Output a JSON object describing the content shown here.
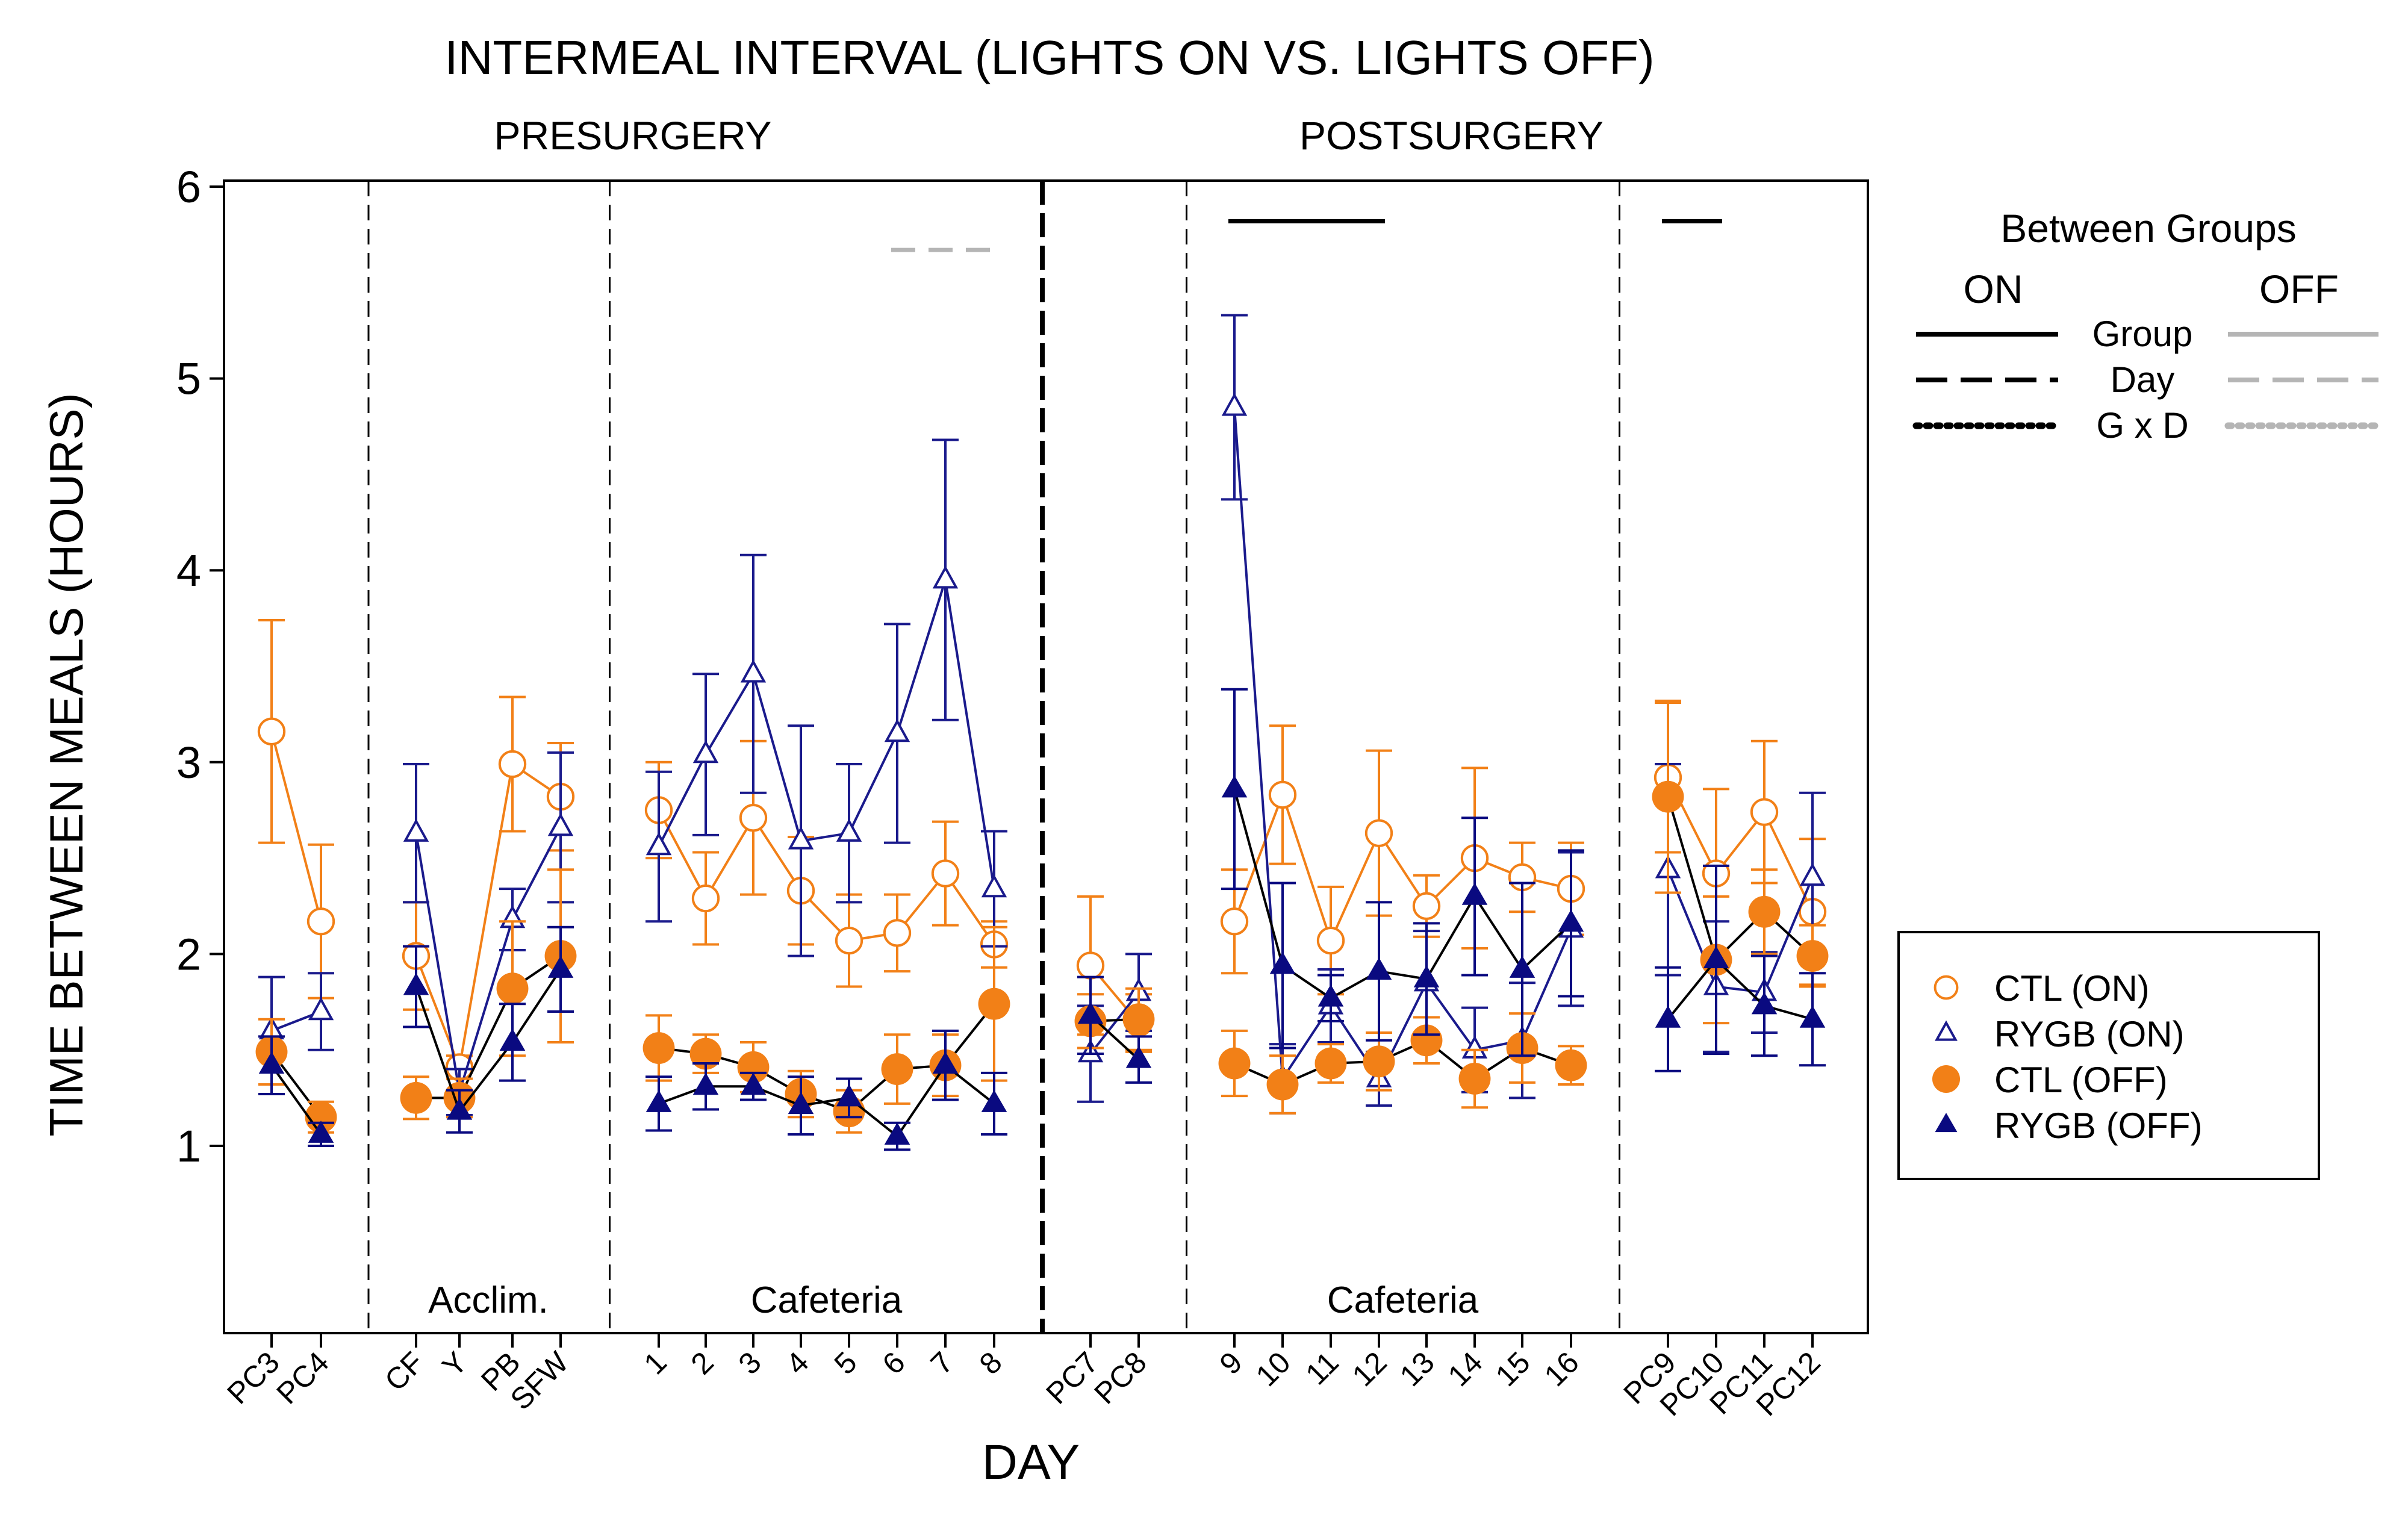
{
  "chart_data": {
    "type": "line",
    "title": "INTERMEAL INTERVAL (LIGHTS ON VS. LIGHTS OFF)",
    "xlabel": "DAY",
    "ylabel": "TIME BETWEEN MEALS (HOURS)",
    "ylim": [
      0,
      6
    ],
    "yticks": [
      1,
      2,
      3,
      4,
      5,
      6
    ],
    "categories": [
      "PC3",
      "PC4",
      "CF",
      "Y",
      "PB",
      "SFW",
      "1",
      "2",
      "3",
      "4",
      "5",
      "6",
      "7",
      "8",
      "PC7",
      "PC8",
      "9",
      "10",
      "11",
      "12",
      "13",
      "14",
      "15",
      "16",
      "PC9",
      "PC10",
      "PC11",
      "PC12"
    ],
    "segments": [
      [
        0,
        1
      ],
      [
        2,
        5
      ],
      [
        6,
        13
      ],
      [
        14,
        15
      ],
      [
        16,
        23
      ],
      [
        24,
        27
      ]
    ],
    "phases": [
      {
        "label": "PRESURGERY",
        "from": 0,
        "to": 13
      },
      {
        "label": "POSTSURGERY",
        "from": 14,
        "to": 27
      }
    ],
    "region_labels": [
      {
        "text": "Acclim.",
        "from": 2,
        "to": 5
      },
      {
        "text": "Cafeteria",
        "from": 6,
        "to": 13
      },
      {
        "text": "Cafeteria",
        "from": 16,
        "to": 23
      }
    ],
    "series": [
      {
        "name": "CTL (ON)",
        "color": "#f28017",
        "marker": "circle",
        "filled": false,
        "values": [
          3.16,
          2.17,
          1.99,
          1.41,
          2.99,
          2.82,
          2.75,
          2.29,
          2.71,
          2.33,
          2.07,
          2.11,
          2.42,
          2.05,
          1.94,
          1.64,
          2.17,
          2.83,
          2.07,
          2.63,
          2.25,
          2.5,
          2.4,
          2.34,
          2.92,
          2.42,
          2.74,
          2.22
        ],
        "errors": [
          0.58,
          0.4,
          0.28,
          0.06,
          0.35,
          0.28,
          0.25,
          0.24,
          0.4,
          0.28,
          0.24,
          0.2,
          0.27,
          0.12,
          0.36,
          0.15,
          0.27,
          0.36,
          0.28,
          0.43,
          0.16,
          0.47,
          0.18,
          0.24,
          0.39,
          0.44,
          0.37,
          0.38
        ]
      },
      {
        "name": "RYGB (ON)",
        "color": "#1a1a8c",
        "marker": "triangle",
        "filled": false,
        "values": [
          1.6,
          1.7,
          2.63,
          1.28,
          2.18,
          2.66,
          2.56,
          3.04,
          3.46,
          2.59,
          2.63,
          3.15,
          3.95,
          2.34,
          1.48,
          1.8,
          4.85,
          1.35,
          1.73,
          1.35,
          1.85,
          1.5,
          1.55,
          2.13,
          2.44,
          1.83,
          1.8,
          2.4
        ],
        "errors": [
          0.28,
          0.2,
          0.36,
          0.12,
          0.16,
          0.39,
          0.39,
          0.42,
          0.62,
          0.6,
          0.36,
          0.57,
          0.73,
          0.3,
          0.25,
          0.2,
          0.48,
          0.18,
          0.19,
          0.14,
          0.27,
          0.22,
          0.3,
          0.4,
          0.55,
          0.34,
          0.21,
          0.44
        ]
      },
      {
        "name": "CTL (OFF)",
        "color": "#f28017",
        "marker": "circle",
        "filled": true,
        "values": [
          1.49,
          1.15,
          1.25,
          1.25,
          1.82,
          1.99,
          1.51,
          1.48,
          1.41,
          1.27,
          1.18,
          1.4,
          1.42,
          1.74,
          1.65,
          1.66,
          1.43,
          1.32,
          1.43,
          1.44,
          1.55,
          1.35,
          1.51,
          1.42,
          2.82,
          1.97,
          2.22,
          1.99
        ],
        "errors": [
          0.17,
          0.08,
          0.11,
          0.1,
          0.35,
          0.45,
          0.17,
          0.1,
          0.13,
          0.12,
          0.11,
          0.18,
          0.16,
          0.4,
          0.14,
          0.16,
          0.17,
          0.15,
          0.1,
          0.15,
          0.12,
          0.15,
          0.18,
          0.1,
          0.5,
          0.33,
          0.22,
          0.16
        ]
      },
      {
        "name": "RYGB (OFF)",
        "color": "#0a0a80",
        "marker": "triangle",
        "filled": true,
        "values": [
          1.42,
          1.06,
          1.83,
          1.18,
          1.54,
          1.92,
          1.22,
          1.31,
          1.31,
          1.21,
          1.25,
          1.05,
          1.42,
          1.22,
          1.68,
          1.45,
          2.86,
          1.94,
          1.77,
          1.91,
          1.87,
          2.3,
          1.92,
          2.16,
          1.66,
          1.97,
          1.73,
          1.66
        ],
        "errors": [
          0.15,
          0.06,
          0.21,
          0.11,
          0.2,
          0.22,
          0.14,
          0.12,
          0.07,
          0.15,
          0.1,
          0.07,
          0.18,
          0.16,
          0.2,
          0.12,
          0.52,
          0.43,
          0.12,
          0.36,
          0.29,
          0.41,
          0.45,
          0.38,
          0.27,
          0.49,
          0.26,
          0.24
        ]
      }
    ],
    "significance_bars": [
      {
        "from": 16,
        "to": 19,
        "y": 5.82,
        "style": "solid",
        "color": "#000000"
      },
      {
        "from": 24,
        "to": 25,
        "y": 5.82,
        "style": "solid",
        "color": "#000000"
      },
      {
        "from": 11,
        "to": 13,
        "y": 5.67,
        "style": "dashed",
        "color": "#b5b5b5"
      }
    ],
    "legend_sig": {
      "title": "Between Groups",
      "on_label": "ON",
      "off_label": "OFF",
      "rows": [
        {
          "label": "Group",
          "style": "solid"
        },
        {
          "label": "Day",
          "style": "dashed"
        },
        {
          "label": "G x D",
          "style": "dotted"
        }
      ],
      "on_color": "#000000",
      "off_color": "#b5b5b5"
    },
    "legend_series_placement": "right"
  }
}
